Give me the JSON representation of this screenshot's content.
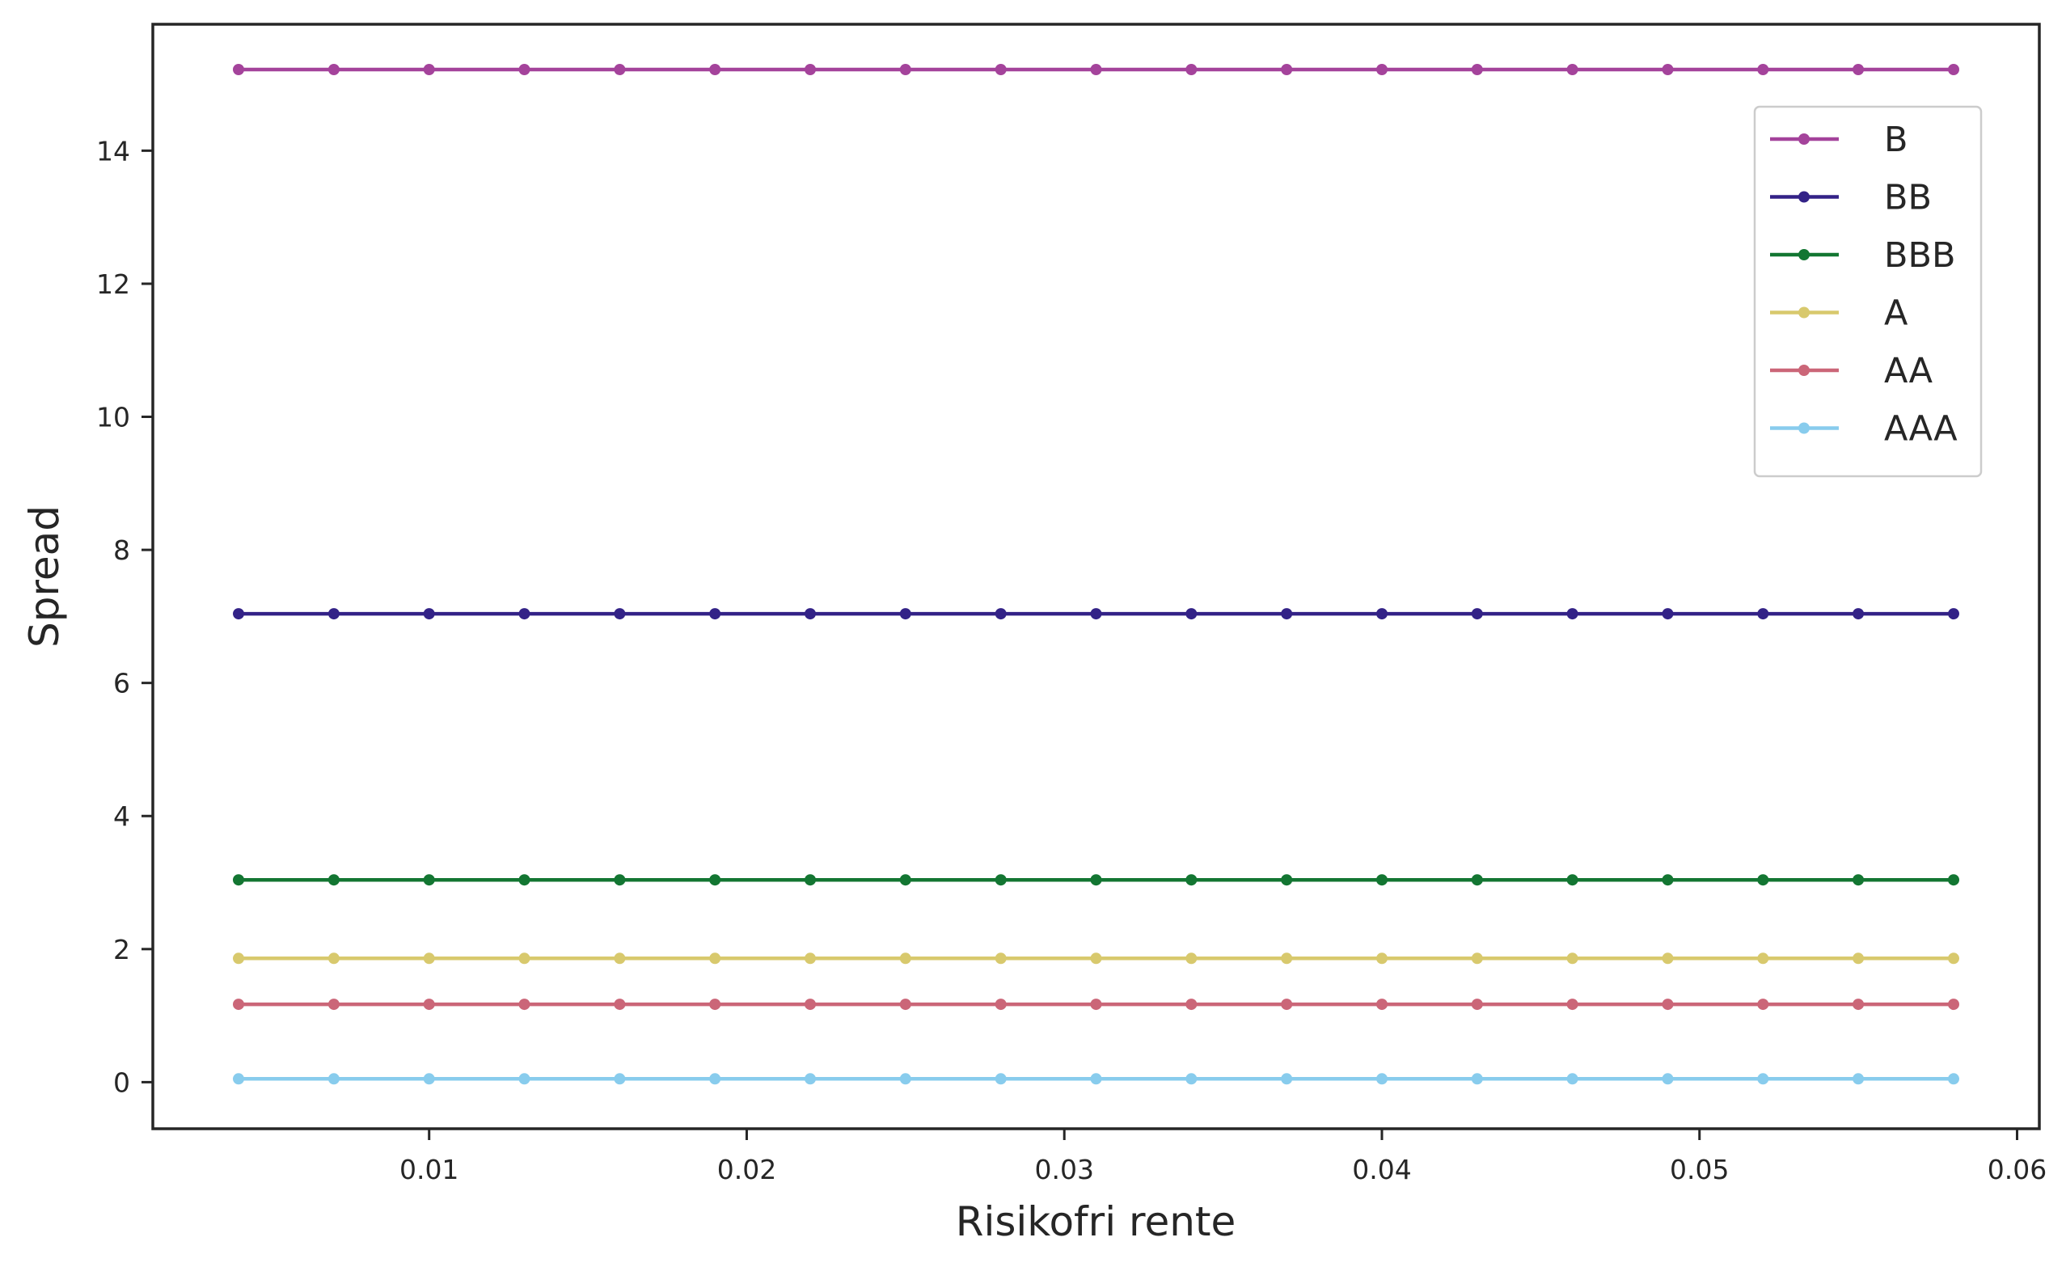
{
  "chart_data": {
    "type": "line",
    "title": "",
    "xlabel": "Risikofri rente",
    "ylabel": "Spread",
    "xlim": [
      0.0013,
      0.0607
    ],
    "ylim": [
      -0.7,
      15.9
    ],
    "xticks": [
      0.01,
      0.02,
      0.03,
      0.04,
      0.05,
      0.06
    ],
    "xtick_labels": [
      "0.01",
      "0.02",
      "0.03",
      "0.04",
      "0.05",
      "0.06"
    ],
    "yticks": [
      0,
      2,
      4,
      6,
      8,
      10,
      12,
      14
    ],
    "ytick_labels": [
      "0",
      "2",
      "4",
      "6",
      "8",
      "10",
      "12",
      "14"
    ],
    "grid": false,
    "legend_position": "top-right",
    "x": [
      0.004,
      0.007,
      0.01,
      0.013,
      0.016,
      0.019,
      0.022,
      0.025,
      0.028,
      0.031,
      0.034,
      0.037,
      0.04,
      0.043,
      0.046,
      0.049,
      0.052,
      0.055,
      0.058
    ],
    "series": [
      {
        "name": "B",
        "color": "#a4439b",
        "values": [
          15.22,
          15.22,
          15.22,
          15.22,
          15.22,
          15.22,
          15.22,
          15.22,
          15.22,
          15.22,
          15.22,
          15.22,
          15.22,
          15.22,
          15.22,
          15.22,
          15.22,
          15.22,
          15.22
        ]
      },
      {
        "name": "BB",
        "color": "#332287",
        "values": [
          7.04,
          7.04,
          7.04,
          7.04,
          7.04,
          7.04,
          7.04,
          7.04,
          7.04,
          7.04,
          7.04,
          7.04,
          7.04,
          7.04,
          7.04,
          7.04,
          7.04,
          7.04,
          7.04
        ]
      },
      {
        "name": "BBB",
        "color": "#137632",
        "values": [
          3.04,
          3.04,
          3.04,
          3.04,
          3.04,
          3.04,
          3.04,
          3.04,
          3.04,
          3.04,
          3.04,
          3.04,
          3.04,
          3.04,
          3.04,
          3.04,
          3.04,
          3.04,
          3.04
        ]
      },
      {
        "name": "A",
        "color": "#d8c96d",
        "values": [
          1.86,
          1.86,
          1.86,
          1.86,
          1.86,
          1.86,
          1.86,
          1.86,
          1.86,
          1.86,
          1.86,
          1.86,
          1.86,
          1.86,
          1.86,
          1.86,
          1.86,
          1.86,
          1.86
        ]
      },
      {
        "name": "AA",
        "color": "#cb6678",
        "values": [
          1.17,
          1.17,
          1.17,
          1.17,
          1.17,
          1.17,
          1.17,
          1.17,
          1.17,
          1.17,
          1.17,
          1.17,
          1.17,
          1.17,
          1.17,
          1.17,
          1.17,
          1.17,
          1.17
        ]
      },
      {
        "name": "AAA",
        "color": "#88cced",
        "values": [
          0.05,
          0.05,
          0.05,
          0.05,
          0.05,
          0.05,
          0.05,
          0.05,
          0.05,
          0.05,
          0.05,
          0.05,
          0.05,
          0.05,
          0.05,
          0.05,
          0.05,
          0.05,
          0.05
        ]
      }
    ]
  }
}
